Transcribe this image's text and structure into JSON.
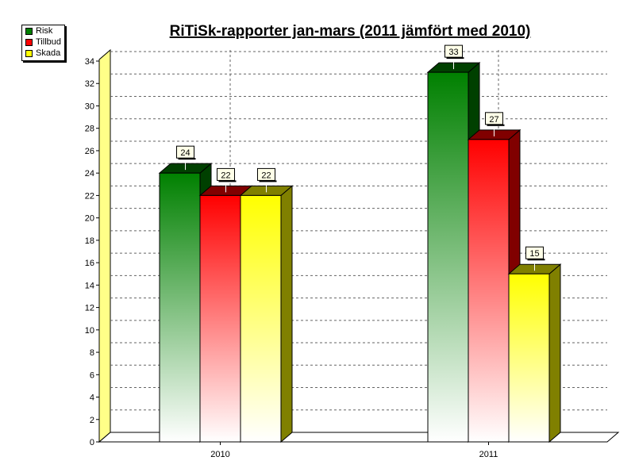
{
  "chart_data": {
    "type": "bar",
    "title": "RiTiSk-rapporter jan-mars (2011 jämfört med 2010)",
    "categories": [
      "2010",
      "2011"
    ],
    "series": [
      {
        "name": "Risk",
        "values": [
          24,
          33
        ],
        "color": "#008000",
        "side_color": "#004000"
      },
      {
        "name": "Tillbud",
        "values": [
          22,
          27
        ],
        "color": "#ff0000",
        "side_color": "#800000"
      },
      {
        "name": "Skada",
        "values": [
          22,
          15
        ],
        "color": "#ffff00",
        "side_color": "#808000"
      }
    ],
    "ylim": [
      0,
      34
    ],
    "yticks": [
      0,
      2,
      4,
      6,
      8,
      10,
      12,
      14,
      16,
      18,
      20,
      22,
      24,
      26,
      28,
      30,
      32,
      34
    ],
    "xlabel": "",
    "ylabel": "",
    "grid": true,
    "legend_position": "top-left"
  }
}
